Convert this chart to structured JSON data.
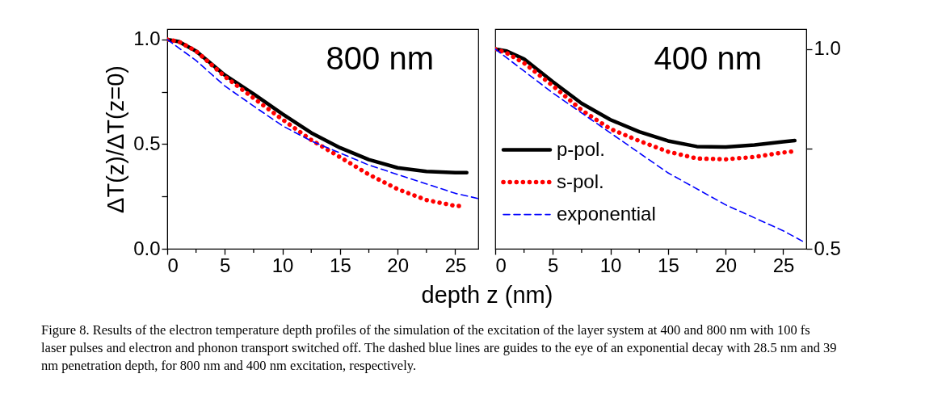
{
  "chart_data": [
    {
      "type": "line",
      "title": "800 nm",
      "xlabel": "depth z (nm)",
      "ylabel": "ΔT(z)/ΔT(z=0)",
      "xlim": [
        0,
        27
      ],
      "ylim": [
        0,
        1.05
      ],
      "xticks": [
        0,
        {
          "value": 2.5,
          "label": null
        },
        5,
        {
          "value": 7.5,
          "label": null
        },
        10,
        {
          "value": 12.5,
          "label": null
        },
        15,
        {
          "value": 17.5,
          "label": null
        },
        20,
        {
          "value": 22.5,
          "label": null
        },
        25
      ],
      "yticks": [
        {
          "value": 0,
          "label": "0.0"
        },
        {
          "value": 0.25,
          "label": null
        },
        0.5,
        {
          "value": 0.75,
          "label": null
        },
        {
          "value": 1,
          "label": "1.0"
        }
      ],
      "grid": false,
      "legend": false,
      "annotations": [
        "Figure 8. Results of the electron temperature depth profiles of the simulation of the excitation of the layer system at 400 and 800 nm with 100 fs laser pulses and electron and phonon transport switched off. The dashed blue lines are guides to the eye of an exponential decay with 28.5 nm and 39 nm penetration depth, for 800 nm and 400 nm excitation, respectively."
      ],
      "series": [
        {
          "color": "#000000",
          "line_style": "solid",
          "x": [
            0,
            1,
            2.5,
            5,
            7.5,
            10,
            12.5,
            15,
            17.5,
            20,
            22.5,
            25,
            26
          ],
          "values": [
            1.0,
            0.99,
            0.945,
            0.83,
            0.74,
            0.644,
            0.554,
            0.483,
            0.426,
            0.387,
            0.37,
            0.364,
            0.364
          ]
        },
        {
          "color": "#ff0000",
          "line_style": "dotted",
          "x": [
            0,
            1,
            2.5,
            5,
            7.5,
            10,
            12.5,
            15,
            17.5,
            20,
            22.5,
            25,
            25.7
          ],
          "values": [
            1.0,
            0.99,
            0.945,
            0.823,
            0.72,
            0.618,
            0.52,
            0.438,
            0.355,
            0.285,
            0.233,
            0.205,
            0.205
          ]
        },
        {
          "color": "#0000ff",
          "line_style": "dashed",
          "x": [
            0,
            2.5,
            5,
            7.5,
            10,
            12.5,
            15,
            17.5,
            20,
            22.5,
            25,
            27
          ],
          "values": [
            1.0,
            0.9,
            0.778,
            0.682,
            0.588,
            0.515,
            0.458,
            0.4,
            0.355,
            0.31,
            0.265,
            0.24
          ]
        }
      ]
    },
    {
      "type": "line",
      "title": "400 nm",
      "xlim": [
        0,
        27
      ],
      "y2lim": [
        0.5,
        1.05
      ],
      "xticks": [
        0,
        {
          "value": 2.5,
          "label": null
        },
        5,
        {
          "value": 7.5,
          "label": null
        },
        10,
        {
          "value": 12.5,
          "label": null
        },
        15,
        {
          "value": 17.5,
          "label": null
        },
        20,
        {
          "value": 22.5,
          "label": null
        },
        25
      ],
      "y2ticks": [
        0.5,
        {
          "value": 0.75,
          "label": null
        },
        {
          "value": 1,
          "label": "1.0"
        }
      ],
      "grid": false,
      "legend": "left",
      "series": [
        {
          "name": "p-pol.",
          "color": "#000000",
          "line_style": "solid",
          "axis": "y2",
          "x": [
            0,
            1,
            2.5,
            5,
            7.5,
            10,
            12.5,
            15,
            17.5,
            20,
            22.5,
            25,
            26
          ],
          "values": [
            1.0,
            0.995,
            0.975,
            0.918,
            0.864,
            0.823,
            0.793,
            0.77,
            0.756,
            0.755,
            0.76,
            0.768,
            0.771
          ]
        },
        {
          "name": "s-pol.",
          "color": "#ff0000",
          "line_style": "dotted",
          "axis": "y2",
          "x": [
            0,
            1,
            2.5,
            5,
            7.5,
            10,
            12.5,
            15,
            17.5,
            20,
            22.5,
            25,
            26
          ],
          "values": [
            1.0,
            0.99,
            0.965,
            0.908,
            0.847,
            0.8,
            0.77,
            0.743,
            0.726,
            0.724,
            0.73,
            0.741,
            0.744
          ]
        },
        {
          "name": "exponential",
          "color": "#0000ff",
          "line_style": "dashed",
          "axis": "y2",
          "x": [
            0,
            5,
            10,
            15,
            20,
            25,
            26.8
          ],
          "values": [
            1.0,
            0.89,
            0.79,
            0.69,
            0.61,
            0.545,
            0.517
          ]
        }
      ]
    }
  ]
}
